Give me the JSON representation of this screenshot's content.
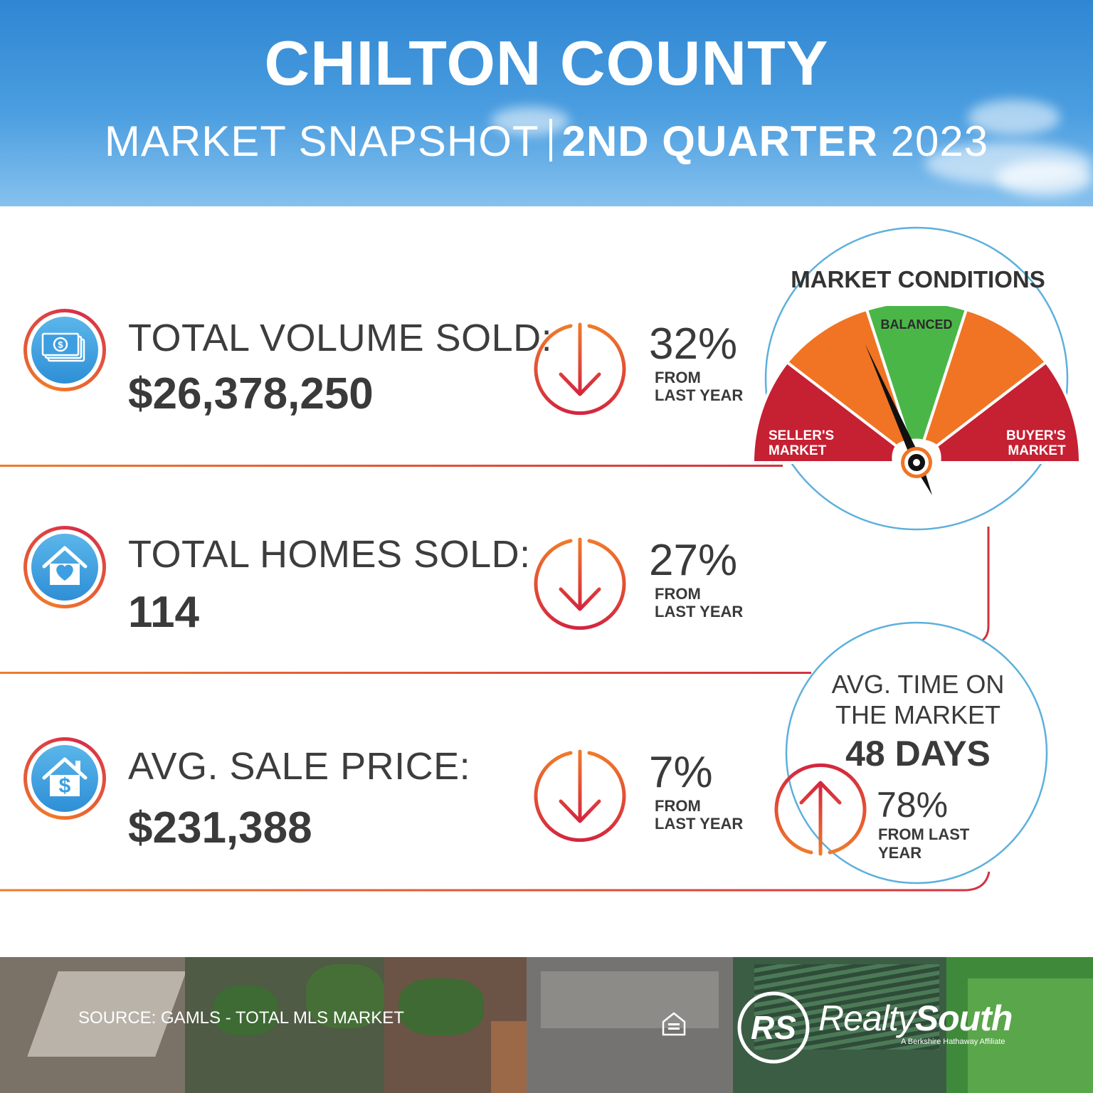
{
  "header": {
    "title": "CHILTON COUNTY",
    "subtitle_left": "MARKET SNAPSHOT",
    "subtitle_bold": "2ND QUARTER",
    "subtitle_year": "2023"
  },
  "stats": [
    {
      "label": "TOTAL VOLUME SOLD:",
      "value": "$26,378,250",
      "change": "32%",
      "from": [
        "FROM",
        "LAST YEAR"
      ],
      "direction": "down",
      "icon": "money-bills-icon"
    },
    {
      "label": "TOTAL HOMES SOLD:",
      "value": "114",
      "change": "27%",
      "from": [
        "FROM",
        "LAST YEAR"
      ],
      "direction": "down",
      "icon": "house-heart-icon"
    },
    {
      "label": "AVG. SALE PRICE:",
      "value": "$231,388",
      "change": "7%",
      "from": [
        "FROM",
        "LAST YEAR"
      ],
      "direction": "down",
      "icon": "house-dollar-icon"
    }
  ],
  "market_conditions": {
    "title": "MARKET CONDITIONS",
    "sellers": [
      "SELLER'S",
      "MARKET"
    ],
    "balanced": "BALANCED",
    "buyers": [
      "BUYER'S",
      "MARKET"
    ],
    "indicator": "balanced, leaning toward seller's market",
    "colors": {
      "red": "#c62033",
      "orange": "#f07423",
      "green": "#4bb648"
    }
  },
  "time_on_market": {
    "title": [
      "AVG. TIME ON",
      "THE MARKET"
    ],
    "value": "48 DAYS",
    "change": "78%",
    "from": [
      "FROM LAST",
      "YEAR"
    ],
    "direction": "up"
  },
  "footer": {
    "source": "SOURCE: GAMLS - TOTAL MLS MARKET",
    "brand_light": "Realty",
    "brand_bold": "South",
    "tagline": "A Berkshire Hathaway Affiliate",
    "logo_letters": "RS"
  },
  "colors": {
    "accent_orange": "#ee7c2d",
    "accent_red": "#d4323f",
    "sky_blue": "#3a92d8",
    "text": "#3a3a3a"
  }
}
